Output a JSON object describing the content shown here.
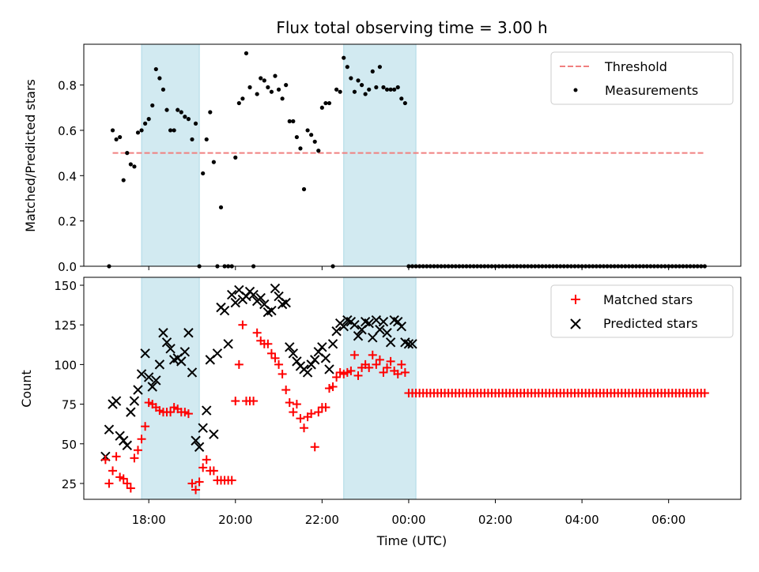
{
  "chart_data": [
    {
      "type": "scatter",
      "title": "Flux total observing time = 3.00 h",
      "xlabel": "",
      "ylabel": "Matched/Predicted stars",
      "xlim": [
        "16:30",
        "07:40"
      ],
      "ylim": [
        0,
        0.98
      ],
      "yticks": [
        "0.0",
        "0.2",
        "0.4",
        "0.6",
        "0.8"
      ],
      "shaded_regions": [
        [
          "17:50",
          "19:10"
        ],
        [
          "22:30",
          "00:10"
        ]
      ],
      "shade_color": "#add8e6",
      "legend": {
        "position": "top-right",
        "entries": [
          "Threshold",
          "Measurements"
        ]
      },
      "series": [
        {
          "name": "Threshold",
          "kind": "dashed-line",
          "color": "#f08080",
          "x": [
            "17:10",
            "06:50"
          ],
          "y": [
            0.5,
            0.5
          ]
        },
        {
          "name": "Measurements",
          "kind": "dot",
          "color": "#000000",
          "x": [
            "17:05",
            "17:10",
            "17:15",
            "17:20",
            "17:25",
            "17:30",
            "17:35",
            "17:40",
            "17:45",
            "17:50",
            "17:55",
            "18:00",
            "18:05",
            "18:10",
            "18:15",
            "18:20",
            "18:25",
            "18:30",
            "18:35",
            "18:40",
            "18:45",
            "18:50",
            "18:55",
            "19:00",
            "19:05",
            "19:10",
            "19:15",
            "19:20",
            "19:25",
            "19:30",
            "19:35",
            "19:40",
            "19:45",
            "19:50",
            "19:55",
            "20:00",
            "20:05",
            "20:10",
            "20:15",
            "20:20",
            "20:25",
            "20:30",
            "20:35",
            "20:40",
            "20:45",
            "20:50",
            "20:55",
            "21:00",
            "21:05",
            "21:10",
            "21:15",
            "21:20",
            "21:25",
            "21:30",
            "21:35",
            "21:40",
            "21:45",
            "21:50",
            "21:55",
            "22:00",
            "22:05",
            "22:10",
            "22:15",
            "22:20",
            "22:25",
            "22:30",
            "22:35",
            "22:40",
            "22:45",
            "22:50",
            "22:55",
            "23:00",
            "23:05",
            "23:10",
            "23:15",
            "23:20",
            "23:25",
            "23:30",
            "23:35",
            "23:40",
            "23:45",
            "23:50",
            "23:55",
            "00:00",
            "00:05",
            "00:10"
          ],
          "y": [
            0,
            0.6,
            0.56,
            0.57,
            0.38,
            0.5,
            0.45,
            0.44,
            0.59,
            0.6,
            0.63,
            0.65,
            0.71,
            0.87,
            0.83,
            0.78,
            0.69,
            0.6,
            0.6,
            0.69,
            0.68,
            0.66,
            0.65,
            0.56,
            0.63,
            0,
            0.41,
            0.56,
            0.68,
            0.46,
            0,
            0.26,
            0,
            0,
            0,
            0.48,
            0.72,
            0.74,
            0.94,
            0.79,
            0,
            0.76,
            0.83,
            0.82,
            0.79,
            0.77,
            0.84,
            0.78,
            0.74,
            0.8,
            0.64,
            0.64,
            0.57,
            0.52,
            0.34,
            0.6,
            0.58,
            0.55,
            0.51,
            0.7,
            0.72,
            0.72,
            0,
            0.78,
            0.77,
            0.92,
            0.88,
            0.83,
            0.77,
            0.82,
            0.8,
            0.76,
            0.78,
            0.86,
            0.79,
            0.88,
            0.79,
            0.78,
            0.78,
            0.78,
            0.79,
            0.74,
            0.72,
            0,
            0,
            0
          ],
          "zero_run": {
            "from": "00:15",
            "to": "06:50",
            "step_minutes": 5,
            "value": 0
          }
        }
      ]
    },
    {
      "type": "scatter",
      "xlabel": "Time (UTC)",
      "ylabel": "Count",
      "xlim": [
        "16:30",
        "07:40"
      ],
      "xticks": [
        "18:00",
        "20:00",
        "22:00",
        "00:00",
        "02:00",
        "04:00",
        "06:00"
      ],
      "ylim": [
        15,
        155
      ],
      "yticks": [
        "25",
        "50",
        "75",
        "100",
        "125",
        "150"
      ],
      "shaded_regions": [
        [
          "17:50",
          "19:10"
        ],
        [
          "22:30",
          "00:10"
        ]
      ],
      "legend": {
        "position": "top-right",
        "entries": [
          "Matched stars",
          "Predicted stars"
        ]
      },
      "series": [
        {
          "name": "Matched stars",
          "marker": "+",
          "color": "#ff0000",
          "x": [
            "17:00",
            "17:05",
            "17:10",
            "17:15",
            "17:20",
            "17:25",
            "17:30",
            "17:35",
            "17:40",
            "17:45",
            "17:50",
            "17:55",
            "18:00",
            "18:05",
            "18:10",
            "18:15",
            "18:20",
            "18:25",
            "18:30",
            "18:35",
            "18:40",
            "18:45",
            "18:50",
            "18:55",
            "19:00",
            "19:05",
            "19:10",
            "19:15",
            "19:20",
            "19:25",
            "19:30",
            "19:35",
            "19:40",
            "19:45",
            "19:50",
            "19:55",
            "20:00",
            "20:05",
            "20:10",
            "20:15",
            "20:20",
            "20:25",
            "20:30",
            "20:35",
            "20:40",
            "20:45",
            "20:50",
            "20:55",
            "21:00",
            "21:05",
            "21:10",
            "21:15",
            "21:20",
            "21:25",
            "21:30",
            "21:35",
            "21:40",
            "21:45",
            "21:50",
            "21:55",
            "22:00",
            "22:05",
            "22:10",
            "22:15",
            "22:20",
            "22:25",
            "22:30",
            "22:35",
            "22:40",
            "22:45",
            "22:50",
            "22:55",
            "23:00",
            "23:05",
            "23:10",
            "23:15",
            "23:20",
            "23:25",
            "23:30",
            "23:35",
            "23:40",
            "23:45",
            "23:50",
            "23:55",
            "00:00",
            "00:05",
            "00:10"
          ],
          "y": [
            40,
            25,
            33,
            42,
            29,
            28,
            25,
            22,
            41,
            46,
            53,
            61,
            76,
            75,
            73,
            71,
            70,
            70,
            70,
            73,
            72,
            70,
            70,
            69,
            25,
            21,
            26,
            35,
            40,
            33,
            33,
            27,
            27,
            27,
            27,
            27,
            77,
            100,
            125,
            77,
            77,
            77,
            120,
            115,
            113,
            113,
            107,
            104,
            100,
            94,
            84,
            76,
            70,
            75,
            66,
            60,
            67,
            69,
            48,
            70,
            73,
            73,
            85,
            86,
            92,
            95,
            94,
            95,
            96,
            106,
            93,
            98,
            100,
            98,
            106,
            100,
            103,
            95,
            98,
            102,
            96,
            94,
            100,
            95,
            82,
            82,
            82
          ],
          "constant_run": {
            "from": "00:15",
            "to": "06:50",
            "step_minutes": 5,
            "value": 82
          }
        },
        {
          "name": "Predicted stars",
          "marker": "x",
          "color": "#000000",
          "x": [
            "17:00",
            "17:05",
            "17:10",
            "17:15",
            "17:20",
            "17:25",
            "17:30",
            "17:35",
            "17:40",
            "17:45",
            "17:50",
            "17:55",
            "18:00",
            "18:05",
            "18:10",
            "18:15",
            "18:20",
            "18:25",
            "18:30",
            "18:35",
            "18:40",
            "18:45",
            "18:50",
            "18:55",
            "19:00",
            "19:05",
            "19:10",
            "19:15",
            "19:20",
            "19:25",
            "19:30",
            "19:35",
            "19:40",
            "19:45",
            "19:50",
            "19:55",
            "20:00",
            "20:05",
            "20:10",
            "20:15",
            "20:20",
            "20:25",
            "20:30",
            "20:35",
            "20:40",
            "20:45",
            "20:50",
            "20:55",
            "21:00",
            "21:05",
            "21:10",
            "21:15",
            "21:20",
            "21:25",
            "21:30",
            "21:35",
            "21:40",
            "21:45",
            "21:50",
            "21:55",
            "22:00",
            "22:05",
            "22:10",
            "22:15",
            "22:20",
            "22:25",
            "22:30",
            "22:35",
            "22:40",
            "22:45",
            "22:50",
            "22:55",
            "23:00",
            "23:05",
            "23:10",
            "23:15",
            "23:20",
            "23:25",
            "23:30",
            "23:35",
            "23:40",
            "23:45",
            "23:50",
            "23:55",
            "00:00",
            "00:05",
            "00:10"
          ],
          "y": [
            42,
            59,
            75,
            77,
            55,
            52,
            49,
            70,
            77,
            84,
            94,
            107,
            92,
            86,
            90,
            100,
            120,
            114,
            110,
            103,
            104,
            102,
            108,
            120,
            95,
            52,
            48,
            60,
            71,
            103,
            56,
            107,
            136,
            134,
            113,
            144,
            139,
            147,
            141,
            143,
            146,
            144,
            140,
            142,
            138,
            133,
            134,
            148,
            143,
            138,
            139,
            111,
            107,
            102,
            99,
            97,
            95,
            100,
            103,
            108,
            111,
            104,
            97,
            113,
            121,
            126,
            124,
            128,
            127,
            125,
            118,
            122,
            127,
            126,
            117,
            128,
            122,
            127,
            120,
            114,
            128,
            127,
            124,
            114,
            113,
            113,
            113
          ],
          "cutoff": "00:05"
        }
      ]
    }
  ]
}
